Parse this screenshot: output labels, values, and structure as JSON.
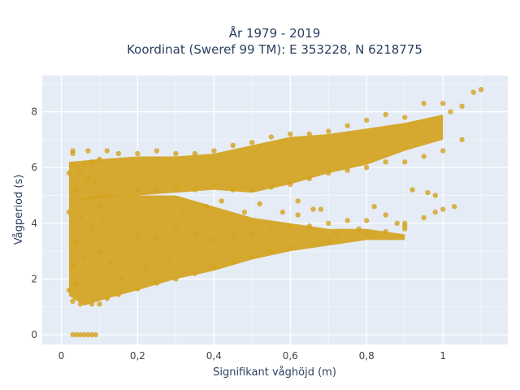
{
  "chart_data": {
    "type": "scatter",
    "title_lines": [
      "År 1979 - 2019",
      "Koordinat (Sweref 99 TM): E 353228, N 6218775"
    ],
    "xlabel": "Signifikant våghöjd (m)",
    "ylabel": "Vågperiod (s)",
    "xlim": [
      -0.05,
      1.17
    ],
    "ylim": [
      -0.35,
      9.3
    ],
    "x_ticks": [
      {
        "value": 0,
        "label": "0"
      },
      {
        "value": 0.2,
        "label": "0,2"
      },
      {
        "value": 0.4,
        "label": "0,4"
      },
      {
        "value": 0.6,
        "label": "0,6"
      },
      {
        "value": 0.8,
        "label": "0,8"
      },
      {
        "value": 1,
        "label": "1"
      }
    ],
    "y_ticks": [
      {
        "value": 0,
        "label": "0"
      },
      {
        "value": 2,
        "label": "2"
      },
      {
        "value": 4,
        "label": "4"
      },
      {
        "value": 6,
        "label": "6"
      },
      {
        "value": 8,
        "label": "8"
      }
    ],
    "grid": true,
    "legend": "none",
    "marker_color": "#d4a21f",
    "plot_background": "#e5ecf6",
    "series": [
      {
        "points": [
          [
            0.03,
            0
          ],
          [
            0.04,
            0
          ],
          [
            0.05,
            0
          ],
          [
            0.06,
            0
          ],
          [
            0.07,
            0
          ],
          [
            0.08,
            0
          ],
          [
            0.09,
            0
          ],
          [
            0.02,
            1.6
          ],
          [
            0.03,
            1.2
          ],
          [
            0.05,
            1.1
          ],
          [
            0.08,
            1.1
          ],
          [
            0.1,
            1.1
          ],
          [
            0.12,
            1.3
          ],
          [
            0.15,
            1.45
          ],
          [
            0.2,
            1.65
          ],
          [
            0.25,
            1.85
          ],
          [
            0.3,
            2.0
          ],
          [
            0.35,
            2.2
          ],
          [
            0.4,
            2.45
          ],
          [
            0.45,
            2.6
          ],
          [
            0.5,
            2.8
          ],
          [
            0.55,
            3.0
          ],
          [
            0.6,
            3.1
          ],
          [
            0.7,
            3.35
          ],
          [
            0.8,
            3.6
          ],
          [
            0.85,
            3.7
          ],
          [
            0.03,
            2.5
          ],
          [
            0.04,
            3.3
          ],
          [
            0.05,
            4.2
          ],
          [
            0.04,
            5.2
          ],
          [
            0.05,
            5.8
          ],
          [
            0.06,
            6.1
          ],
          [
            0.03,
            6.5
          ],
          [
            0.08,
            6.2
          ],
          [
            0.1,
            6.3
          ],
          [
            0.12,
            6.6
          ],
          [
            0.15,
            6.5
          ],
          [
            0.2,
            6.5
          ],
          [
            0.25,
            6.6
          ],
          [
            0.3,
            6.5
          ],
          [
            0.35,
            6.5
          ],
          [
            0.4,
            6.6
          ],
          [
            0.45,
            6.8
          ],
          [
            0.5,
            6.9
          ],
          [
            0.55,
            7.1
          ],
          [
            0.6,
            7.2
          ],
          [
            0.65,
            7.2
          ],
          [
            0.7,
            7.3
          ],
          [
            0.75,
            7.5
          ],
          [
            0.8,
            7.7
          ],
          [
            0.85,
            7.9
          ],
          [
            0.9,
            7.8
          ],
          [
            0.95,
            8.3
          ],
          [
            1.0,
            8.3
          ],
          [
            1.02,
            8.0
          ],
          [
            1.05,
            8.2
          ],
          [
            1.08,
            8.7
          ],
          [
            1.1,
            8.8
          ],
          [
            0.1,
            3.0
          ],
          [
            0.15,
            3.4
          ],
          [
            0.2,
            3.5
          ],
          [
            0.25,
            3.5
          ],
          [
            0.3,
            3.8
          ],
          [
            0.35,
            3.6
          ],
          [
            0.4,
            3.4
          ],
          [
            0.45,
            3.5
          ],
          [
            0.5,
            3.6
          ],
          [
            0.55,
            3.8
          ],
          [
            0.6,
            3.9
          ],
          [
            0.65,
            3.9
          ],
          [
            0.7,
            4.0
          ],
          [
            0.75,
            4.1
          ],
          [
            0.8,
            4.1
          ],
          [
            0.85,
            4.3
          ],
          [
            0.9,
            4.0
          ],
          [
            0.95,
            4.2
          ],
          [
            1.0,
            4.5
          ],
          [
            1.03,
            4.6
          ],
          [
            0.98,
            4.4
          ],
          [
            0.12,
            5.0
          ],
          [
            0.2,
            5.2
          ],
          [
            0.25,
            5.2
          ],
          [
            0.3,
            5.3
          ],
          [
            0.35,
            5.2
          ],
          [
            0.4,
            5.4
          ],
          [
            0.45,
            5.2
          ],
          [
            0.5,
            5.2
          ],
          [
            0.55,
            5.3
          ],
          [
            0.6,
            5.4
          ],
          [
            0.65,
            5.6
          ],
          [
            0.7,
            5.8
          ],
          [
            0.75,
            5.9
          ],
          [
            0.8,
            6.0
          ],
          [
            0.85,
            6.2
          ],
          [
            0.9,
            6.2
          ],
          [
            0.95,
            6.4
          ],
          [
            1.0,
            6.6
          ],
          [
            1.05,
            7.0
          ],
          [
            0.08,
            3.8
          ],
          [
            0.1,
            4.6
          ],
          [
            0.07,
            5.6
          ],
          [
            0.06,
            2.8
          ],
          [
            0.04,
            1.8
          ],
          [
            0.02,
            4.4
          ],
          [
            0.02,
            5.8
          ],
          [
            0.03,
            6.6
          ],
          [
            0.07,
            6.6
          ],
          [
            0.09,
            5.4
          ],
          [
            0.11,
            4.0
          ],
          [
            0.13,
            2.6
          ],
          [
            0.16,
            2.0
          ],
          [
            0.22,
            2.4
          ],
          [
            0.28,
            2.8
          ],
          [
            0.32,
            4.3
          ],
          [
            0.38,
            4.6
          ],
          [
            0.42,
            4.8
          ],
          [
            0.48,
            4.4
          ],
          [
            0.52,
            4.7
          ],
          [
            0.58,
            4.4
          ],
          [
            0.62,
            4.8
          ],
          [
            0.68,
            4.5
          ],
          [
            0.72,
            3.6
          ],
          [
            0.78,
            3.8
          ],
          [
            0.82,
            4.6
          ],
          [
            0.88,
            4.0
          ],
          [
            0.92,
            5.2
          ],
          [
            0.96,
            5.1
          ],
          [
            0.98,
            5.0
          ],
          [
            0.9,
            3.9
          ],
          [
            0.9,
            3.8
          ],
          [
            0.66,
            4.5
          ],
          [
            0.62,
            4.3
          ]
        ]
      }
    ]
  }
}
